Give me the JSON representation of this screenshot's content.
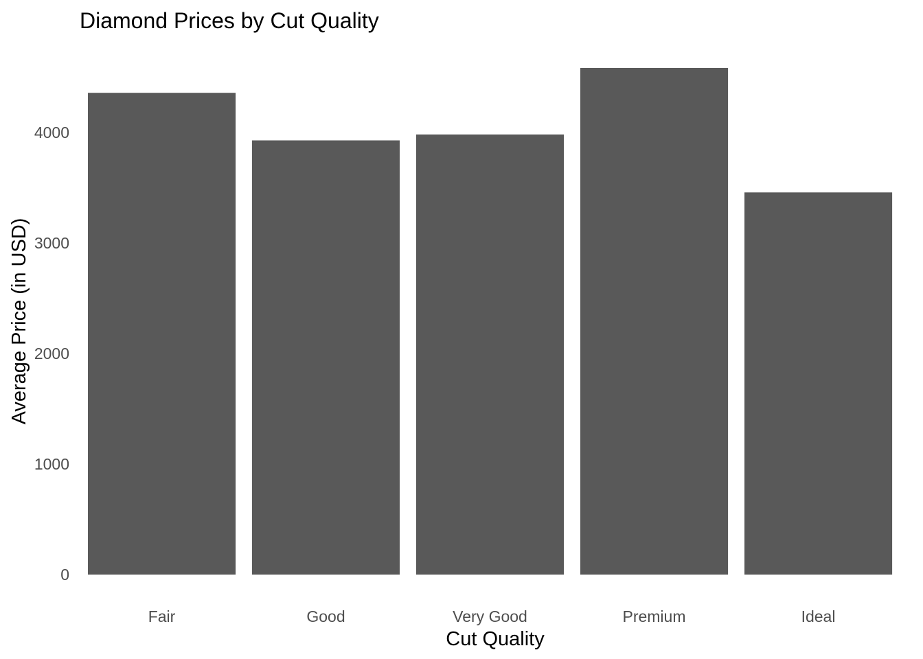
{
  "chart_data": {
    "type": "bar",
    "title": "Diamond Prices by Cut Quality",
    "xlabel": "Cut Quality",
    "ylabel": "Average Price (in USD)",
    "categories": [
      "Fair",
      "Good",
      "Very Good",
      "Premium",
      "Ideal"
    ],
    "values": [
      4359,
      3929,
      3982,
      4584,
      3458
    ],
    "ylim": [
      0,
      4584
    ],
    "yticks": [
      0,
      1000,
      2000,
      3000,
      4000
    ],
    "ytick_labels": [
      "0",
      "1000",
      "2000",
      "3000",
      "4000"
    ],
    "grid": false,
    "legend": "none",
    "bar_color": "#595959"
  }
}
